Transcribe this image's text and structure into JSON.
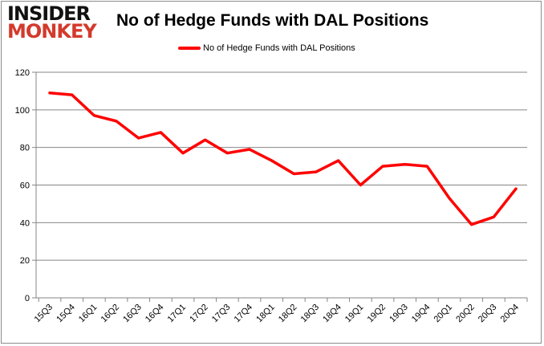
{
  "logo": {
    "line1": "INSIDER",
    "line2": "MONKEY"
  },
  "chart_data": {
    "type": "line",
    "title": "No of Hedge Funds with DAL Positions",
    "categories": [
      "15Q3",
      "15Q4",
      "16Q1",
      "16Q2",
      "16Q3",
      "16Q4",
      "17Q1",
      "17Q2",
      "17Q3",
      "17Q4",
      "18Q1",
      "18Q2",
      "18Q3",
      "18Q4",
      "19Q1",
      "19Q2",
      "19Q3",
      "19Q4",
      "20Q1",
      "20Q2",
      "20Q3",
      "20Q4"
    ],
    "series": [
      {
        "name": "No of Hedge Funds with DAL Positions",
        "color": "#ff0000",
        "values": [
          109,
          108,
          97,
          94,
          85,
          88,
          77,
          84,
          77,
          79,
          73,
          66,
          67,
          73,
          60,
          70,
          71,
          70,
          53,
          39,
          43,
          58
        ]
      }
    ],
    "yticks": [
      0,
      20,
      40,
      60,
      80,
      100,
      120
    ],
    "ylim": [
      0,
      120
    ],
    "grid": true,
    "legend": "top-center"
  }
}
